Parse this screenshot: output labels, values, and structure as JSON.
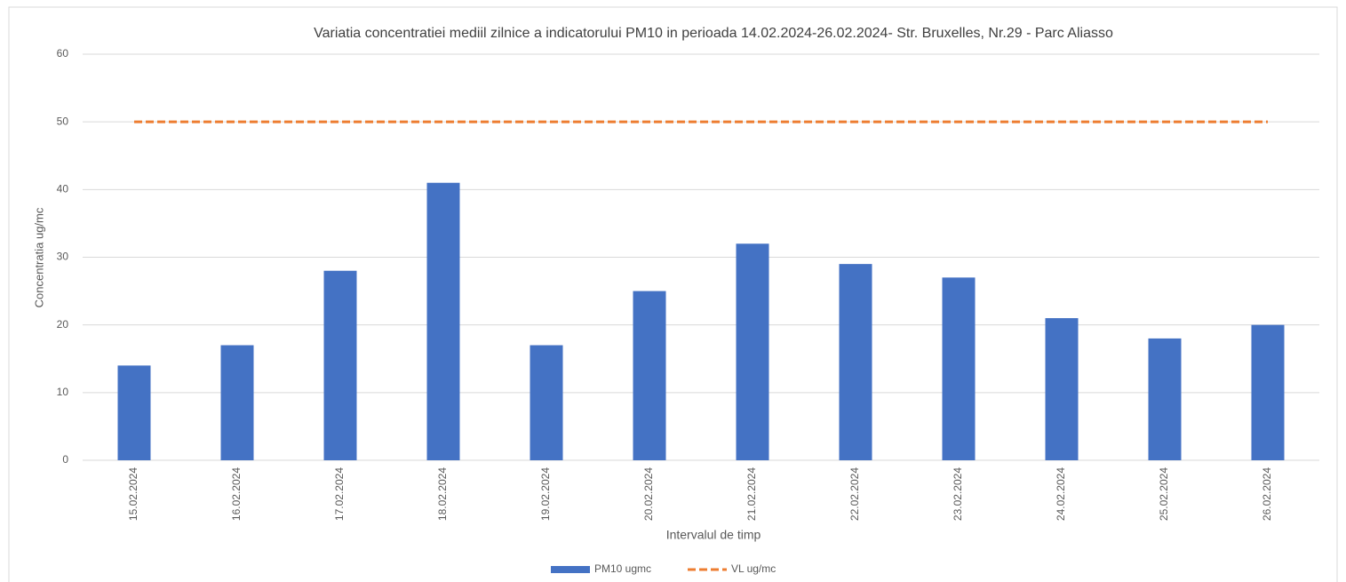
{
  "chart_data": {
    "type": "bar",
    "title": "Variatia concentratiei mediil zilnice a indicatorului PM10 in perioada 14.02.2024-26.02.2024- Str. Bruxelles, Nr.29 - Parc Aliasso",
    "x_label": "Intervalul de timp",
    "y_label": "Concentratia ug/mc",
    "categories": [
      "15.02.2024",
      "16.02.2024",
      "17.02.2024",
      "18.02.2024",
      "19.02.2024",
      "20.02.2024",
      "21.02.2024",
      "22.02.2024",
      "23.02.2024",
      "24.02.2024",
      "25.02.2024",
      "26.02.2024"
    ],
    "series": [
      {
        "name": "PM10 ugmc",
        "color": "#4472c4",
        "type": "bar",
        "values": [
          14,
          17,
          28,
          41,
          17,
          25,
          32,
          29,
          27,
          21,
          18,
          20
        ]
      },
      {
        "name": "VL ug/mc",
        "color": "#ed7d31",
        "type": "line",
        "dashed": true,
        "values": [
          50,
          50,
          50,
          50,
          50,
          50,
          50,
          50,
          50,
          50,
          50,
          50
        ]
      }
    ],
    "ylim": [
      0,
      60
    ],
    "yticks": [
      0,
      10,
      20,
      30,
      40,
      50,
      60
    ],
    "grid": true,
    "legend": "bottom"
  }
}
